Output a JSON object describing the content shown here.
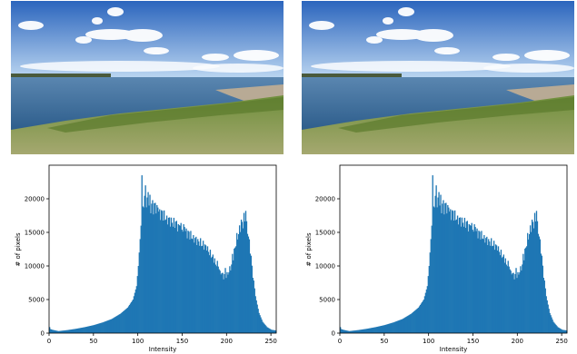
{
  "colors": {
    "bar": "#1f77b4",
    "sky_top": "#2f6fc4",
    "sky_bottom": "#bcd6f0",
    "sea": "#3c6b96",
    "grass": "#8da35a",
    "rocks": "#b8aa95"
  },
  "chart_data": [
    {
      "type": "bar",
      "title": "",
      "xlabel": "Intensity",
      "ylabel": "# of pixels",
      "xlim": [
        0,
        256
      ],
      "ylim": [
        0,
        25000
      ],
      "xticks": [
        0,
        50,
        100,
        150,
        200,
        250
      ],
      "yticks": [
        0,
        5000,
        10000,
        15000,
        20000
      ],
      "grid": false,
      "legend": "none",
      "series": [
        {
          "keypoints": [
            [
              0,
              900
            ],
            [
              1,
              600
            ],
            [
              3,
              500
            ],
            [
              10,
              300
            ],
            [
              20,
              450
            ],
            [
              30,
              650
            ],
            [
              40,
              900
            ],
            [
              50,
              1200
            ],
            [
              60,
              1600
            ],
            [
              70,
              2100
            ],
            [
              80,
              2900
            ],
            [
              88,
              3800
            ],
            [
              94,
              5000
            ],
            [
              98,
              7000
            ],
            [
              100,
              10000
            ],
            [
              102,
              14000
            ],
            [
              104,
              18000
            ],
            [
              106,
              20500
            ],
            [
              110,
              20000
            ],
            [
              115,
              19500
            ],
            [
              120,
              19000
            ],
            [
              125,
              18500
            ],
            [
              130,
              18000
            ],
            [
              135,
              17500
            ],
            [
              140,
              17000
            ],
            [
              145,
              16500
            ],
            [
              150,
              16200
            ],
            [
              155,
              15500
            ],
            [
              160,
              15000
            ],
            [
              165,
              14500
            ],
            [
              170,
              14000
            ],
            [
              175,
              13500
            ],
            [
              180,
              12500
            ],
            [
              185,
              11500
            ],
            [
              190,
              10500
            ],
            [
              193,
              9500
            ],
            [
              196,
              8800
            ],
            [
              200,
              9000
            ],
            [
              205,
              10500
            ],
            [
              210,
              14000
            ],
            [
              215,
              16500
            ],
            [
              220,
              17500
            ],
            [
              223,
              16000
            ],
            [
              226,
              13000
            ],
            [
              229,
              9000
            ],
            [
              232,
              5500
            ],
            [
              236,
              3000
            ],
            [
              240,
              1700
            ],
            [
              245,
              900
            ],
            [
              250,
              500
            ],
            [
              255,
              400
            ]
          ],
          "spikes": [
            [
              104,
              23500
            ],
            [
              108,
              22000
            ],
            [
              111,
              21000
            ],
            [
              113,
              20600
            ],
            [
              116,
              19800
            ],
            [
              119,
              19400
            ],
            [
              122,
              18700
            ],
            [
              127,
              18200
            ],
            [
              132,
              17500
            ],
            [
              137,
              17200
            ],
            [
              142,
              16600
            ],
            [
              147,
              16000
            ],
            [
              152,
              15800
            ],
            [
              157,
              15100
            ],
            [
              162,
              14600
            ],
            [
              167,
              14000
            ],
            [
              172,
              13000
            ],
            [
              177,
              12300
            ],
            [
              182,
              11200
            ],
            [
              187,
              10200
            ],
            [
              192,
              9300
            ],
            [
              198,
              9700
            ],
            [
              206,
              11800
            ],
            [
              211,
              14900
            ],
            [
              216,
              16900
            ],
            [
              219,
              17900
            ],
            [
              221,
              18200
            ]
          ]
        }
      ]
    },
    {
      "type": "bar",
      "title": "",
      "xlabel": "Intensity",
      "ylabel": "# of pixels",
      "xlim": [
        0,
        256
      ],
      "ylim": [
        0,
        25000
      ],
      "xticks": [
        0,
        50,
        100,
        150,
        200,
        250
      ],
      "yticks": [
        0,
        5000,
        10000,
        15000,
        20000
      ],
      "grid": false,
      "legend": "none",
      "series": [
        {
          "keypoints": [
            [
              0,
              900
            ],
            [
              1,
              600
            ],
            [
              3,
              500
            ],
            [
              10,
              300
            ],
            [
              20,
              450
            ],
            [
              30,
              650
            ],
            [
              40,
              900
            ],
            [
              50,
              1200
            ],
            [
              60,
              1600
            ],
            [
              70,
              2100
            ],
            [
              80,
              2900
            ],
            [
              88,
              3800
            ],
            [
              94,
              5000
            ],
            [
              98,
              7000
            ],
            [
              100,
              10000
            ],
            [
              102,
              14000
            ],
            [
              104,
              18000
            ],
            [
              106,
              20500
            ],
            [
              110,
              20000
            ],
            [
              115,
              19500
            ],
            [
              120,
              19000
            ],
            [
              125,
              18500
            ],
            [
              130,
              18000
            ],
            [
              135,
              17500
            ],
            [
              140,
              17000
            ],
            [
              145,
              16500
            ],
            [
              150,
              16200
            ],
            [
              155,
              15500
            ],
            [
              160,
              15000
            ],
            [
              165,
              14500
            ],
            [
              170,
              14000
            ],
            [
              175,
              13500
            ],
            [
              180,
              12500
            ],
            [
              185,
              11500
            ],
            [
              190,
              10500
            ],
            [
              193,
              9500
            ],
            [
              196,
              8800
            ],
            [
              200,
              9000
            ],
            [
              205,
              10500
            ],
            [
              210,
              14000
            ],
            [
              215,
              16500
            ],
            [
              220,
              17500
            ],
            [
              223,
              16000
            ],
            [
              226,
              13000
            ],
            [
              229,
              9000
            ],
            [
              232,
              5500
            ],
            [
              236,
              3000
            ],
            [
              240,
              1700
            ],
            [
              245,
              900
            ],
            [
              250,
              500
            ],
            [
              255,
              400
            ]
          ],
          "spikes": [
            [
              104,
              23500
            ],
            [
              108,
              22000
            ],
            [
              111,
              21000
            ],
            [
              113,
              20600
            ],
            [
              116,
              19800
            ],
            [
              119,
              19400
            ],
            [
              122,
              18700
            ],
            [
              127,
              18200
            ],
            [
              132,
              17500
            ],
            [
              137,
              17200
            ],
            [
              142,
              16600
            ],
            [
              147,
              16000
            ],
            [
              152,
              15800
            ],
            [
              157,
              15100
            ],
            [
              162,
              14600
            ],
            [
              167,
              14000
            ],
            [
              172,
              13000
            ],
            [
              177,
              12300
            ],
            [
              182,
              11200
            ],
            [
              187,
              10200
            ],
            [
              192,
              9300
            ],
            [
              198,
              9700
            ],
            [
              206,
              11800
            ],
            [
              211,
              14900
            ],
            [
              216,
              16900
            ],
            [
              219,
              17900
            ],
            [
              221,
              18200
            ]
          ]
        }
      ]
    }
  ]
}
